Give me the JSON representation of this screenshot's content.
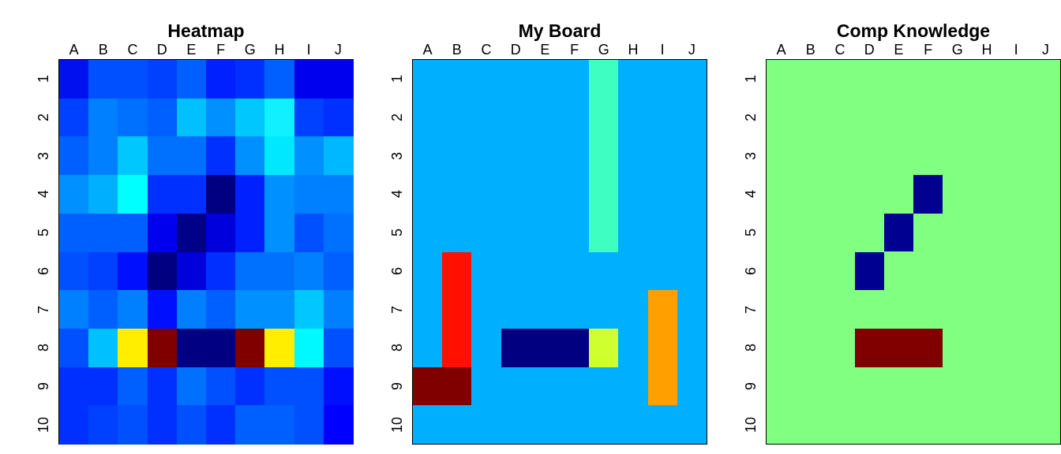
{
  "columns": [
    "A",
    "B",
    "C",
    "D",
    "E",
    "F",
    "G",
    "H",
    "I",
    "J"
  ],
  "rows": [
    "1",
    "2",
    "3",
    "4",
    "5",
    "6",
    "7",
    "8",
    "9",
    "10"
  ],
  "panels": [
    {
      "title": "Heatmap",
      "cells": [
        [
          "#0010ee",
          "#0050ff",
          "#0050ff",
          "#0040ff",
          "#0060ff",
          "#0020ff",
          "#0030ff",
          "#0060ff",
          "#0000ee",
          "#0000ee"
        ],
        [
          "#0040ff",
          "#0080ff",
          "#0070ff",
          "#0060ff",
          "#00c0ff",
          "#0090ff",
          "#00c8ff",
          "#10f0ff",
          "#0040ff",
          "#0030ff"
        ],
        [
          "#0060ff",
          "#0080ff",
          "#00c8ff",
          "#0070ff",
          "#0070ff",
          "#0030ff",
          "#0090ff",
          "#00e8ff",
          "#0090ff",
          "#00b8ff"
        ],
        [
          "#0090ff",
          "#00b0ff",
          "#00ffff",
          "#0030ff",
          "#0030ff",
          "#000080",
          "#0020ff",
          "#0090ff",
          "#0080ff",
          "#0080ff"
        ],
        [
          "#0060ff",
          "#0060ff",
          "#0060ff",
          "#0000ee",
          "#000088",
          "#0000dd",
          "#0020ff",
          "#0090ff",
          "#0050ff",
          "#0070ff"
        ],
        [
          "#0050ff",
          "#0040ff",
          "#0010ff",
          "#000080",
          "#0000dd",
          "#0030ff",
          "#0070ff",
          "#0070ff",
          "#0080ff",
          "#0060ff"
        ],
        [
          "#0080ff",
          "#0060ff",
          "#0080ff",
          "#0010ff",
          "#0080ff",
          "#0060ff",
          "#0090ff",
          "#0090ff",
          "#00c8ff",
          "#0080ff"
        ],
        [
          "#0050ff",
          "#00c0ff",
          "#ffee00",
          "#800000",
          "#000080",
          "#000080",
          "#800000",
          "#ffee00",
          "#00f8ff",
          "#0050ff"
        ],
        [
          "#0030ff",
          "#0030ff",
          "#0060ff",
          "#0030ff",
          "#0070ff",
          "#0050ff",
          "#0030ff",
          "#0050ff",
          "#0050ff",
          "#0010ff"
        ],
        [
          "#0030ff",
          "#0040ff",
          "#0050ff",
          "#0030ff",
          "#0050ff",
          "#0030ff",
          "#0060ff",
          "#0060ff",
          "#0050ff",
          "#0000ff"
        ]
      ]
    },
    {
      "title": "My Board",
      "background": "#00b0ff",
      "ships": [
        {
          "color": "#3fffc0",
          "col": 6,
          "row": 0,
          "w": 1,
          "h": 5
        },
        {
          "color": "#ff1000",
          "col": 1,
          "row": 5,
          "w": 1,
          "h": 4
        },
        {
          "color": "#800000",
          "col": 0,
          "row": 8,
          "w": 2,
          "h": 1
        },
        {
          "color": "#000080",
          "col": 3,
          "row": 7,
          "w": 3,
          "h": 1
        },
        {
          "color": "#d0ff30",
          "col": 6,
          "row": 7,
          "w": 1,
          "h": 1
        },
        {
          "color": "#ffa000",
          "col": 8,
          "row": 6,
          "w": 1,
          "h": 3
        }
      ]
    },
    {
      "title": "Comp Knowledge",
      "background": "#80ff80",
      "ships": [
        {
          "color": "#000090",
          "col": 5,
          "row": 3,
          "w": 1,
          "h": 1
        },
        {
          "color": "#000090",
          "col": 4,
          "row": 4,
          "w": 1,
          "h": 1
        },
        {
          "color": "#000090",
          "col": 3,
          "row": 5,
          "w": 1,
          "h": 1
        },
        {
          "color": "#800000",
          "col": 3,
          "row": 7,
          "w": 3,
          "h": 1
        }
      ]
    }
  ]
}
